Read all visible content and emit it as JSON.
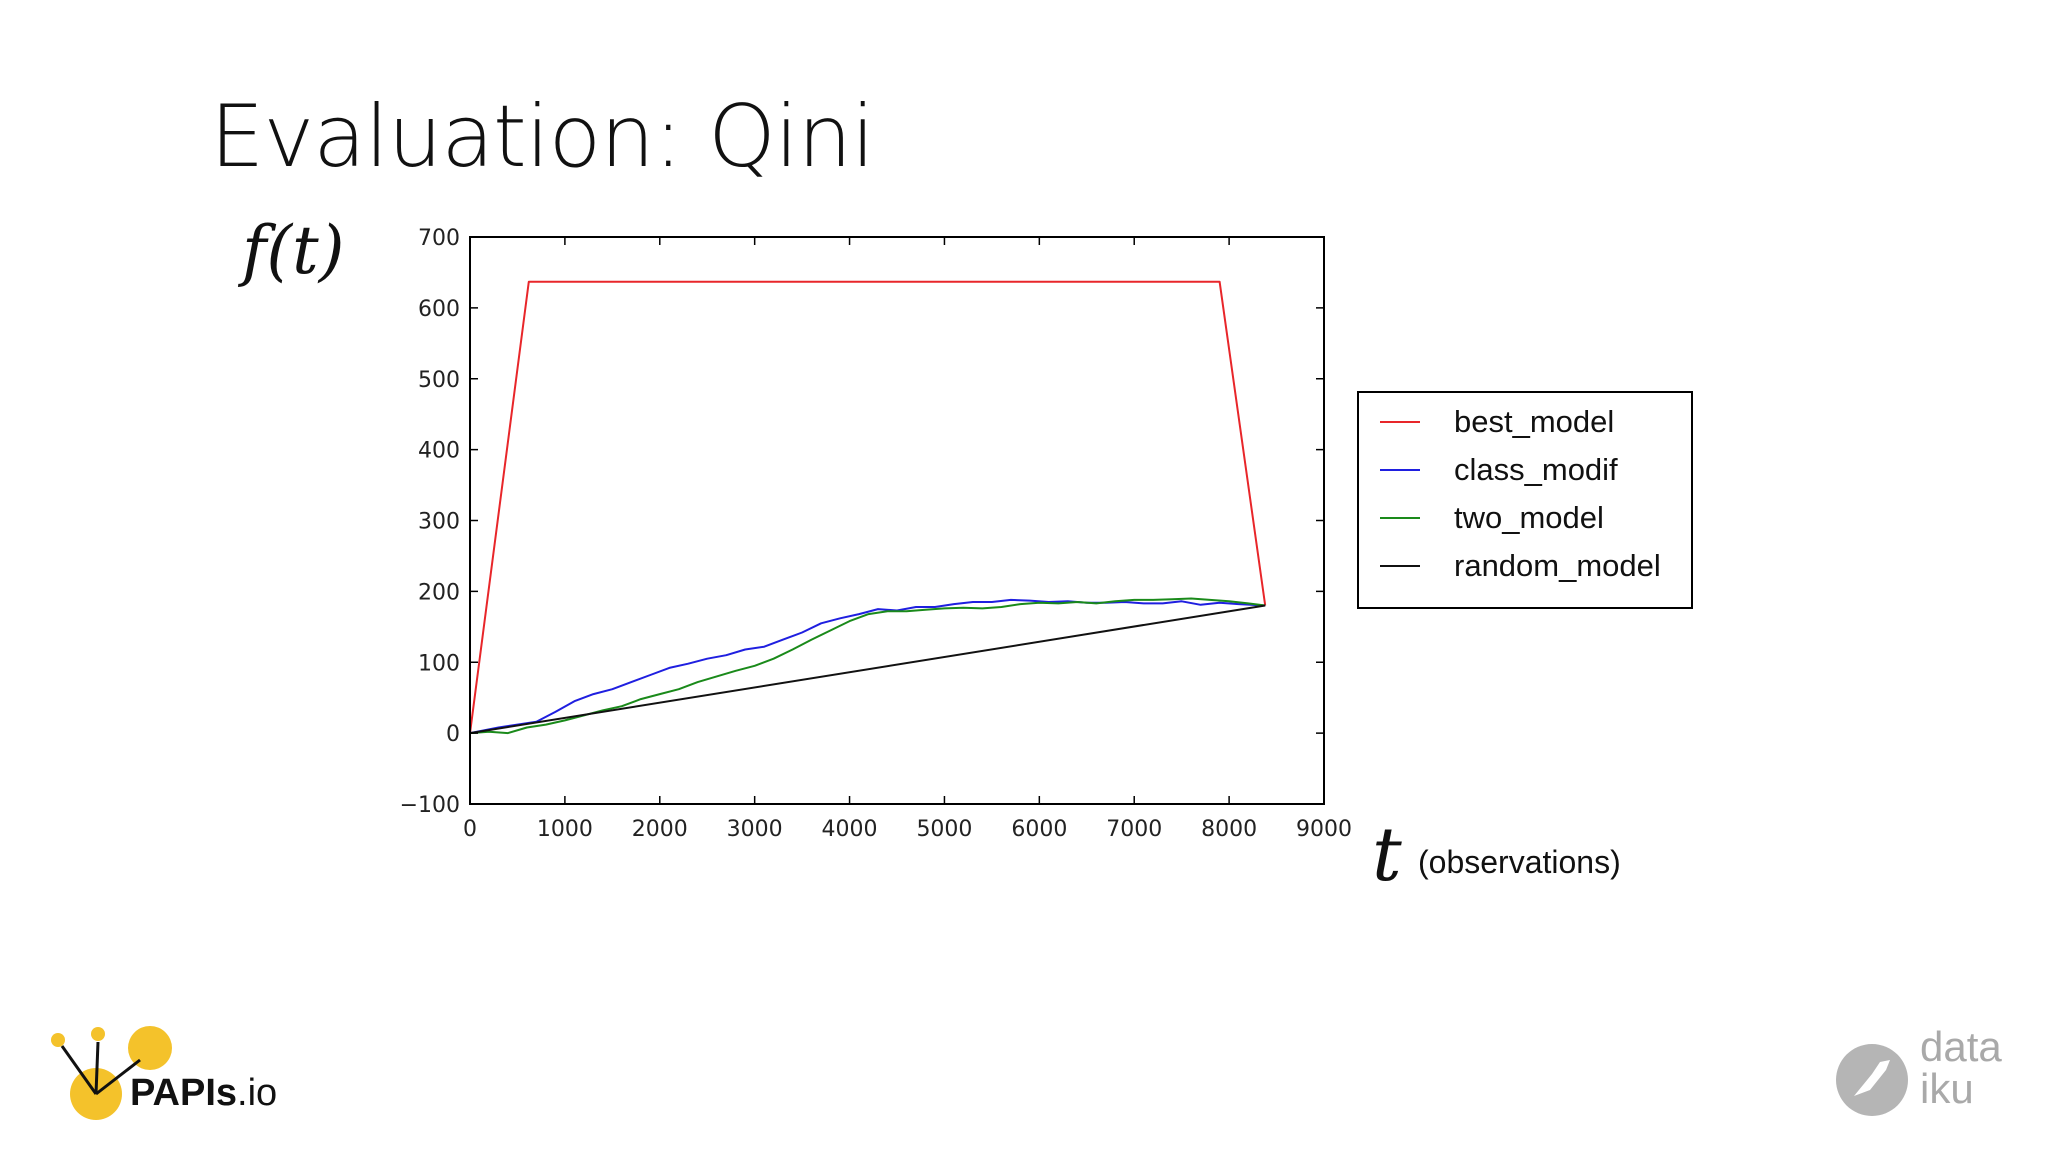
{
  "slide": {
    "title": "Evaluation: Qini",
    "y_label": "f(t)",
    "x_label_symbol": "t",
    "x_label_text": "(observations)"
  },
  "logos": {
    "papis_bold": "PAPIs",
    "papis_rest": ".io",
    "dataiku_line1": "data",
    "dataiku_line2": "iku"
  },
  "colors": {
    "best_model": "#e8262a",
    "class_modif": "#1f1fe0",
    "two_model": "#1a8a1a",
    "random_model": "#111111",
    "papis_yellow": "#f4c22b"
  },
  "chart_data": {
    "type": "line",
    "title": "",
    "xlabel": "t",
    "ylabel": "f(t)",
    "xlim": [
      0,
      9000
    ],
    "ylim": [
      -100,
      700
    ],
    "xticks": [
      0,
      1000,
      2000,
      3000,
      4000,
      5000,
      6000,
      7000,
      8000,
      9000
    ],
    "yticks": [
      -100,
      0,
      100,
      200,
      300,
      400,
      500,
      600,
      700
    ],
    "grid": false,
    "legend_position": "outside-right",
    "series": [
      {
        "name": "best_model",
        "x": [
          0,
          620,
          7900,
          8380
        ],
        "y": [
          0,
          637,
          637,
          180
        ]
      },
      {
        "name": "class_modif",
        "x": [
          0,
          300,
          500,
          700,
          900,
          1100,
          1300,
          1500,
          1700,
          1900,
          2100,
          2300,
          2500,
          2700,
          2900,
          3100,
          3300,
          3500,
          3700,
          3900,
          4100,
          4300,
          4500,
          4700,
          4900,
          5100,
          5300,
          5500,
          5700,
          5900,
          6100,
          6300,
          6500,
          6700,
          6900,
          7100,
          7300,
          7500,
          7700,
          7900,
          8100,
          8380
        ],
        "y": [
          0,
          8,
          12,
          16,
          30,
          45,
          55,
          62,
          72,
          82,
          92,
          98,
          105,
          110,
          118,
          122,
          132,
          142,
          155,
          162,
          168,
          175,
          173,
          178,
          178,
          182,
          185,
          185,
          188,
          187,
          185,
          186,
          184,
          184,
          185,
          183,
          183,
          186,
          181,
          184,
          182,
          180
        ]
      },
      {
        "name": "two_model",
        "x": [
          0,
          200,
          400,
          600,
          800,
          1000,
          1200,
          1400,
          1600,
          1800,
          2000,
          2200,
          2400,
          2600,
          2800,
          3000,
          3200,
          3400,
          3600,
          3800,
          4000,
          4200,
          4400,
          4600,
          4800,
          5000,
          5200,
          5400,
          5600,
          5800,
          6000,
          6200,
          6400,
          6600,
          6800,
          7000,
          7200,
          7400,
          7600,
          7800,
          8000,
          8200,
          8380
        ],
        "y": [
          0,
          2,
          0,
          8,
          12,
          18,
          25,
          32,
          38,
          48,
          55,
          62,
          72,
          80,
          88,
          95,
          105,
          118,
          132,
          145,
          158,
          168,
          172,
          172,
          174,
          176,
          177,
          176,
          178,
          182,
          184,
          183,
          185,
          183,
          186,
          188,
          188,
          189,
          190,
          188,
          186,
          183,
          180
        ]
      },
      {
        "name": "random_model",
        "x": [
          0,
          8380
        ],
        "y": [
          0,
          180
        ]
      }
    ]
  }
}
